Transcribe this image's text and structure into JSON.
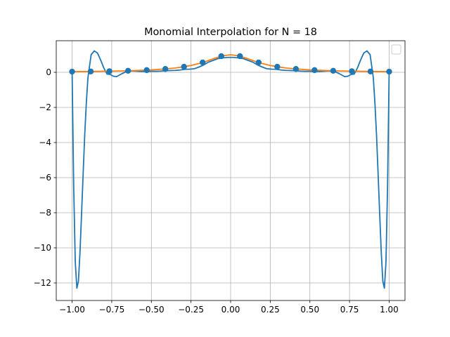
{
  "chart_data": {
    "type": "line",
    "title": "Monomial Interpolation for N = 18",
    "xlabel": "",
    "ylabel": "",
    "xlim": [
      -1.1,
      1.1
    ],
    "ylim": [
      -13,
      1.8
    ],
    "xticks": [
      -1.0,
      -0.75,
      -0.5,
      -0.25,
      0.0,
      0.25,
      0.5,
      0.75,
      1.0
    ],
    "xtick_labels": [
      "−1.00",
      "−0.75",
      "−0.50",
      "−0.25",
      "0.00",
      "0.25",
      "0.50",
      "0.75",
      "1.00"
    ],
    "yticks": [
      -12,
      -10,
      -8,
      -6,
      -4,
      -2,
      0
    ],
    "ytick_labels": [
      "−12",
      "−10",
      "−8",
      "−6",
      "−4",
      "−2",
      "0"
    ],
    "grid": true,
    "legend": "top-right, empty",
    "colors": {
      "interpolant": "#1f77b4",
      "function": "#ff7f0e",
      "points": "#1f77b4",
      "grid": "#b0b0b0"
    },
    "points": {
      "x": [
        -1.0,
        -0.8824,
        -0.7647,
        -0.6471,
        -0.5294,
        -0.4118,
        -0.2941,
        -0.1765,
        -0.0588,
        0.0588,
        0.1765,
        0.2941,
        0.4118,
        0.5294,
        0.6471,
        0.7647,
        0.8824,
        1.0
      ],
      "y": [
        0.0385,
        0.0489,
        0.064,
        0.0872,
        0.1249,
        0.1909,
        0.3163,
        0.5622,
        0.9204,
        0.9204,
        0.5622,
        0.3163,
        0.1909,
        0.1249,
        0.0872,
        0.064,
        0.0489,
        0.0385
      ]
    },
    "series": [
      {
        "kind": "interpolant",
        "x": [
          -1.0,
          -0.99,
          -0.98,
          -0.97,
          -0.96,
          -0.95,
          -0.94,
          -0.93,
          -0.92,
          -0.91,
          -0.9,
          -0.88,
          -0.86,
          -0.84,
          -0.82,
          -0.8,
          -0.78,
          -0.76,
          -0.74,
          -0.72,
          -0.7,
          -0.68,
          -0.66,
          -0.64,
          -0.62,
          -0.6,
          -0.58,
          -0.56,
          -0.53,
          -0.5,
          -0.47,
          -0.44,
          -0.41,
          -0.38,
          -0.35,
          -0.32,
          -0.29,
          -0.26,
          -0.23,
          -0.2,
          -0.17,
          -0.14,
          -0.11,
          -0.08,
          -0.05,
          -0.02,
          0.0,
          0.02,
          0.05,
          0.08,
          0.11,
          0.14,
          0.17,
          0.2,
          0.23,
          0.26,
          0.29,
          0.32,
          0.35,
          0.38,
          0.41,
          0.44,
          0.47,
          0.5,
          0.53,
          0.56,
          0.58,
          0.6,
          0.62,
          0.64,
          0.66,
          0.68,
          0.7,
          0.72,
          0.74,
          0.76,
          0.78,
          0.8,
          0.82,
          0.84,
          0.86,
          0.88,
          0.9,
          0.91,
          0.92,
          0.93,
          0.94,
          0.95,
          0.96,
          0.97,
          0.98,
          0.99,
          1.0
        ],
        "y": [
          0.04,
          -6.5,
          -10.8,
          -12.3,
          -11.9,
          -10.2,
          -8.0,
          -5.7,
          -3.5,
          -1.7,
          -0.3,
          1.0,
          1.22,
          1.1,
          0.7,
          0.25,
          -0.1,
          -0.12,
          -0.22,
          -0.25,
          -0.15,
          -0.05,
          0.03,
          0.07,
          0.08,
          0.07,
          0.06,
          0.05,
          0.05,
          0.06,
          0.06,
          0.07,
          0.09,
          0.1,
          0.11,
          0.13,
          0.17,
          0.18,
          0.2,
          0.3,
          0.42,
          0.58,
          0.68,
          0.78,
          0.82,
          0.85,
          0.85,
          0.85,
          0.82,
          0.78,
          0.68,
          0.58,
          0.42,
          0.3,
          0.2,
          0.18,
          0.17,
          0.13,
          0.11,
          0.1,
          0.09,
          0.07,
          0.06,
          0.06,
          0.05,
          0.05,
          0.06,
          0.07,
          0.08,
          0.07,
          0.03,
          -0.05,
          -0.15,
          -0.25,
          -0.22,
          -0.12,
          -0.1,
          0.25,
          0.7,
          1.1,
          1.22,
          1.0,
          -0.3,
          -1.7,
          -3.5,
          -5.7,
          -8.0,
          -10.2,
          -11.9,
          -12.3,
          -10.8,
          -6.5,
          0.04
        ]
      },
      {
        "kind": "function",
        "x": [
          -1.0,
          -0.9,
          -0.8,
          -0.7,
          -0.6,
          -0.5,
          -0.4,
          -0.35,
          -0.3,
          -0.25,
          -0.2,
          -0.15,
          -0.1,
          -0.05,
          0.0,
          0.05,
          0.1,
          0.15,
          0.2,
          0.25,
          0.3,
          0.35,
          0.4,
          0.5,
          0.6,
          0.7,
          0.8,
          0.9,
          1.0
        ],
        "y": [
          0.0385,
          0.0471,
          0.0588,
          0.0755,
          0.1,
          0.1379,
          0.2,
          0.2462,
          0.3077,
          0.3902,
          0.5,
          0.64,
          0.8,
          0.9412,
          1.0,
          0.9412,
          0.8,
          0.64,
          0.5,
          0.3902,
          0.3077,
          0.2462,
          0.2,
          0.1379,
          0.1,
          0.0755,
          0.0588,
          0.0471,
          0.0385
        ]
      }
    ]
  }
}
